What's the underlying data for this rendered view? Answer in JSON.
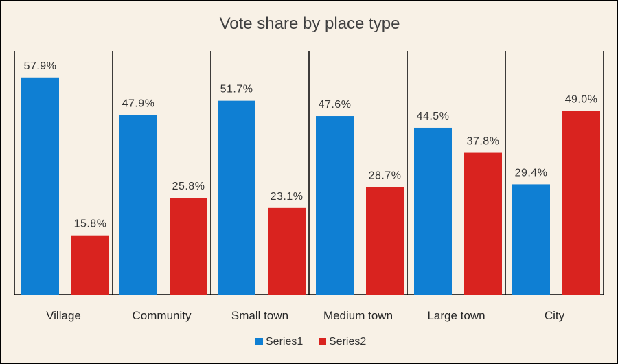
{
  "chart_data": {
    "type": "bar",
    "title": "Vote share by place type",
    "categories": [
      "Village",
      "Community",
      "Small town",
      "Medium town",
      "Large town",
      "City"
    ],
    "series": [
      {
        "name": "Series1",
        "color": "#0f7fd3",
        "values": [
          57.9,
          47.9,
          51.7,
          47.6,
          44.5,
          29.4
        ],
        "labels": [
          "57.9%",
          "47.9%",
          "51.7%",
          "47.6%",
          "44.5%",
          "29.4%"
        ]
      },
      {
        "name": "Series2",
        "color": "#d9231f",
        "values": [
          15.8,
          25.8,
          23.1,
          28.7,
          37.8,
          49.0
        ],
        "labels": [
          "15.8%",
          "25.8%",
          "23.1%",
          "28.7%",
          "37.8%",
          "49.0%"
        ]
      }
    ],
    "ylim": [
      0,
      65
    ],
    "grid": false,
    "category_separators": true,
    "legend": "bottom-center"
  }
}
